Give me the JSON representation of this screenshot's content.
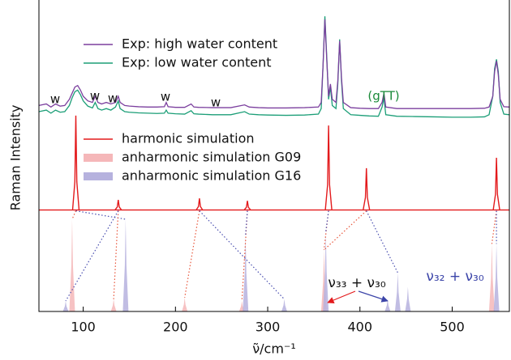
{
  "chart_data": {
    "type": "spectrum",
    "y_label": "Raman Intensity",
    "x_label": "ν̃/cm⁻¹",
    "xlim": [
      52,
      562
    ],
    "ylim": [
      0,
      100
    ],
    "xticks": [
      100,
      200,
      300,
      400,
      500
    ],
    "experiment": {
      "x": [
        52,
        60,
        65,
        70,
        75,
        80,
        85,
        88,
        91,
        94,
        97,
        100,
        105,
        110,
        113,
        116,
        120,
        125,
        130,
        135,
        138,
        140,
        145,
        150,
        160,
        170,
        180,
        188,
        190,
        192,
        200,
        210,
        217,
        220,
        225,
        240,
        260,
        275,
        280,
        290,
        300,
        320,
        340,
        355,
        358,
        360,
        362,
        364,
        366,
        368,
        370,
        374,
        376,
        378,
        380,
        382,
        390,
        400,
        410,
        420,
        424,
        426,
        428,
        440,
        460,
        480,
        500,
        520,
        535,
        540,
        544,
        546,
        548,
        550,
        552,
        556,
        562
      ],
      "series": [
        {
          "name": "Exp:  high water content",
          "color": "#7b3f9e",
          "values": [
            67,
            67.5,
            66.5,
            67.5,
            66.8,
            67,
            69,
            71,
            73,
            73.5,
            72,
            70,
            68.5,
            68,
            70,
            68,
            67.5,
            68,
            67.5,
            68,
            70,
            68,
            67,
            66.8,
            66.6,
            66.5,
            66.5,
            66.6,
            68,
            66.6,
            66.4,
            66.4,
            67.5,
            66.5,
            66.4,
            66.3,
            66.3,
            67.2,
            66.5,
            66.3,
            66.2,
            66.2,
            66.3,
            66.5,
            68,
            80,
            95,
            82,
            70,
            74,
            69,
            68,
            75,
            88,
            76,
            68,
            66.3,
            66.1,
            66,
            66,
            68,
            71,
            66.5,
            66,
            66,
            66,
            66,
            66,
            66.1,
            66.5,
            70,
            78,
            81.5,
            77,
            69,
            66.6,
            66.5
          ]
        },
        {
          "name": "Exp:  low water content",
          "color": "#1b9e77",
          "values": [
            65,
            65.5,
            64.5,
            65.5,
            64.8,
            65,
            67,
            69.5,
            71.5,
            72,
            70.5,
            68.5,
            66.8,
            66.2,
            68,
            66,
            65.5,
            66,
            65.5,
            66.5,
            68.5,
            66,
            65,
            64.8,
            64.6,
            64.5,
            64.4,
            64.5,
            65.5,
            64.5,
            64.3,
            64.2,
            65.3,
            64.3,
            64.2,
            64,
            64,
            65,
            64.2,
            64,
            63.9,
            63.8,
            63.9,
            64.2,
            66,
            80,
            96,
            83,
            69,
            73,
            67,
            66,
            74,
            88.5,
            75,
            66,
            64,
            63.8,
            63.6,
            63.5,
            66.5,
            69.5,
            64,
            63.5,
            63.4,
            63.3,
            63.2,
            63.2,
            63.3,
            64,
            70,
            79,
            82,
            78,
            68,
            64.2,
            64
          ]
        }
      ]
    },
    "harmonic": {
      "name": "harmonic simulation",
      "color": "#e31a1c",
      "baseline": 33,
      "x": [
        92,
        138,
        226,
        278,
        366,
        407,
        548
      ],
      "values": [
        63.7,
        36.3,
        36.8,
        36,
        60.5,
        46.6,
        50
      ]
    },
    "anharmonic": [
      {
        "name": "anharmonic simulation G09",
        "color": "#f5b7b9",
        "x": [
          88,
          133,
          210,
          272,
          361,
          543
        ],
        "values": [
          30,
          4,
          4.5,
          3.4,
          20,
          22
        ]
      },
      {
        "name": "anharmonic simulation G16",
        "color": "#b6b2de",
        "x": [
          81,
          146,
          276,
          318,
          363,
          430,
          441,
          452,
          548
        ],
        "values": [
          3.4,
          30,
          25,
          4,
          26,
          4,
          12.6,
          8,
          22
        ]
      }
    ],
    "annotations": [
      "w",
      "w",
      "w",
      "w",
      "w",
      "(gTT)",
      "ν₃₃ + ν₃₀",
      "ν₃₂ + ν₃₀"
    ]
  }
}
